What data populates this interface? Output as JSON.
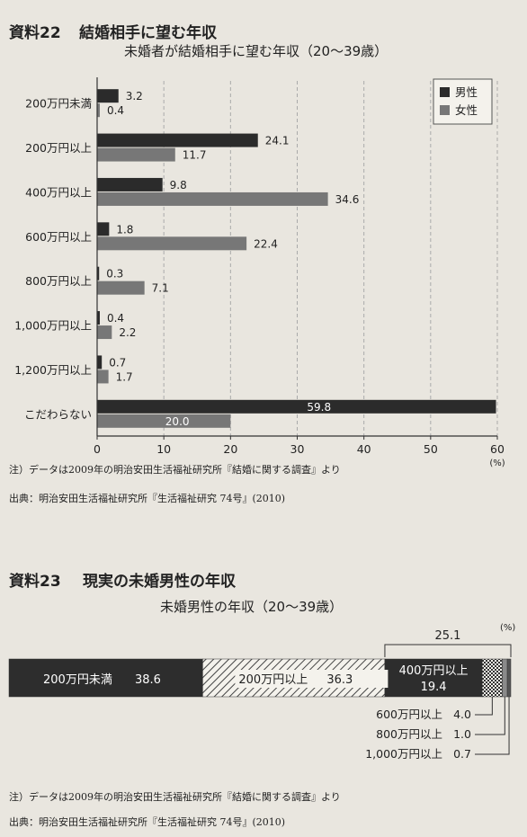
{
  "section22": {
    "label": "資料22",
    "title": "結婚相手に望む年収",
    "subtitle": "未婚者が結婚相手に望む年収（20～39歳）",
    "note": "注）データは2009年の明治安田生活福祉研究所『結婚に関する調査』より",
    "source": "出典：明治安田生活福祉研究所『生活福祉研究 74号』(2010)"
  },
  "section23": {
    "label": "資料23",
    "title": "現実の未婚男性の年収",
    "subtitle": "未婚男性の年収（20～39歳）",
    "note": "注）データは2009年の明治安田生活福祉研究所『結婚に関する調査』より",
    "source": "出典：明治安田生活福祉研究所『生活福祉研究 74号』(2010)"
  },
  "chart_data": [
    {
      "type": "bar",
      "orientation": "horizontal",
      "categories": [
        "200万円未満",
        "200万円以上",
        "400万円以上",
        "600万円以上",
        "800万円以上",
        "1,000万円以上",
        "1,200万円以上",
        "こだわらない"
      ],
      "series": [
        {
          "name": "男性",
          "values": [
            3.2,
            24.1,
            9.8,
            1.8,
            0.3,
            0.4,
            0.7,
            59.8
          ],
          "color": "#2b2b2b"
        },
        {
          "name": "女性",
          "values": [
            0.4,
            11.7,
            34.6,
            22.4,
            7.1,
            2.2,
            1.7,
            20.0
          ],
          "color": "#777777"
        }
      ],
      "xlim": [
        0,
        60
      ],
      "xticks": [
        "0",
        "10",
        "20",
        "30",
        "40",
        "50",
        "60"
      ],
      "unit": "(%)",
      "legend": "top-right",
      "grid": true
    },
    {
      "type": "bar",
      "orientation": "stacked-horizontal",
      "unit": "(%)",
      "segments": [
        {
          "label": "200万円未満",
          "value": 38.6,
          "style": "solid-dark"
        },
        {
          "label": "200万円以上",
          "value": 36.3,
          "style": "hatched"
        },
        {
          "label": "400万円以上",
          "value": 19.4,
          "style": "solid-dark"
        },
        {
          "label": "600万円以上",
          "value": 4.0,
          "style": "dotted"
        },
        {
          "label": "800万円以上",
          "value": 1.0,
          "style": "gray"
        },
        {
          "label": "1,000万円以上",
          "value": 0.7,
          "style": "dark-gray"
        }
      ],
      "bracket_total": "25.1"
    }
  ]
}
